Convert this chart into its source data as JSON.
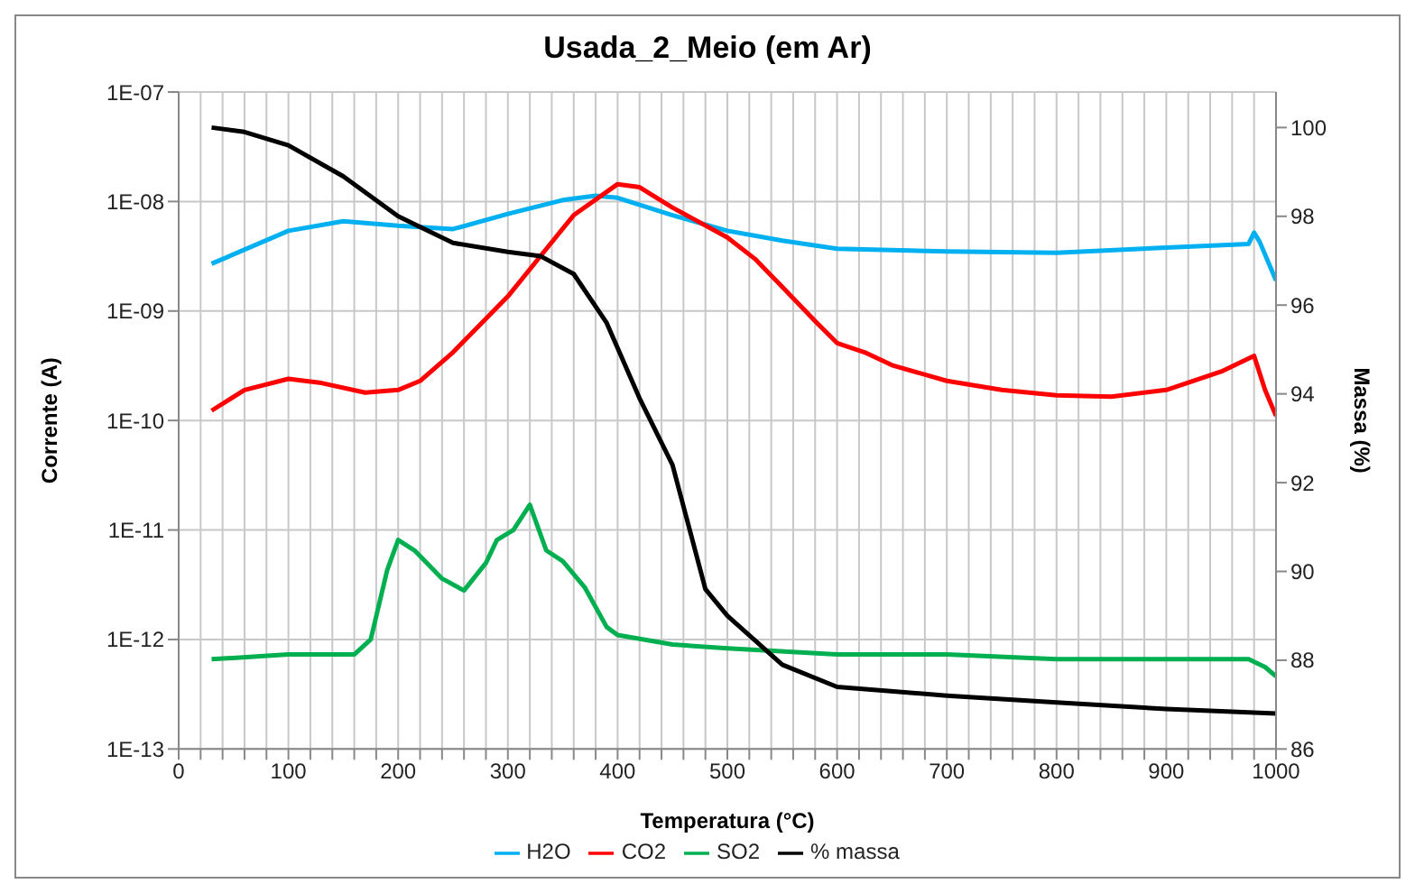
{
  "chart_data": {
    "type": "line",
    "title": "Usada_2_Meio (em Ar)",
    "xlabel": "Temperatura (°C)",
    "ylabel": "Corrente (A)",
    "y2label": "Massa (%)",
    "xlim": [
      0,
      1000
    ],
    "xticks": [
      0,
      {
        "value": 20,
        "label": null
      },
      {
        "value": 40,
        "label": null
      },
      {
        "value": 60,
        "label": null
      },
      {
        "value": 80,
        "label": null
      },
      100,
      {
        "value": 120,
        "label": null
      },
      {
        "value": 140,
        "label": null
      },
      {
        "value": 160,
        "label": null
      },
      {
        "value": 180,
        "label": null
      },
      200,
      {
        "value": 220,
        "label": null
      },
      {
        "value": 240,
        "label": null
      },
      {
        "value": 260,
        "label": null
      },
      {
        "value": 280,
        "label": null
      },
      300,
      {
        "value": 320,
        "label": null
      },
      {
        "value": 340,
        "label": null
      },
      {
        "value": 360,
        "label": null
      },
      {
        "value": 380,
        "label": null
      },
      400,
      {
        "value": 420,
        "label": null
      },
      {
        "value": 440,
        "label": null
      },
      {
        "value": 460,
        "label": null
      },
      {
        "value": 480,
        "label": null
      },
      500,
      {
        "value": 520,
        "label": null
      },
      {
        "value": 540,
        "label": null
      },
      {
        "value": 560,
        "label": null
      },
      {
        "value": 580,
        "label": null
      },
      600,
      {
        "value": 620,
        "label": null
      },
      {
        "value": 640,
        "label": null
      },
      {
        "value": 660,
        "label": null
      },
      {
        "value": 680,
        "label": null
      },
      700,
      {
        "value": 720,
        "label": null
      },
      {
        "value": 740,
        "label": null
      },
      {
        "value": 760,
        "label": null
      },
      {
        "value": 780,
        "label": null
      },
      800,
      {
        "value": 820,
        "label": null
      },
      {
        "value": 840,
        "label": null
      },
      {
        "value": 860,
        "label": null
      },
      {
        "value": 880,
        "label": null
      },
      900,
      {
        "value": 920,
        "label": null
      },
      {
        "value": 940,
        "label": null
      },
      {
        "value": 960,
        "label": null
      },
      {
        "value": 980,
        "label": null
      },
      1000
    ],
    "ylim": [
      1e-13,
      1e-07
    ],
    "yticks": [
      {
        "value": 1e-13,
        "label": "1E-13"
      },
      {
        "value": 1e-12,
        "label": "1E-12"
      },
      {
        "value": 1e-11,
        "label": "1E-11"
      },
      {
        "value": 1e-10,
        "label": "1E-10"
      },
      {
        "value": 1e-09,
        "label": "1E-09"
      },
      {
        "value": 1e-08,
        "label": "1E-08"
      },
      {
        "value": 1e-07,
        "label": "1E-07"
      }
    ],
    "y2lim": [
      86,
      100.8
    ],
    "y2ticks": [
      86,
      88,
      90,
      92,
      94,
      96,
      98,
      100
    ],
    "log": "y",
    "grid": true,
    "legend": "bottom",
    "series": [
      {
        "name": "H2O",
        "color": "#00b0f0",
        "x": [
          30,
          100,
          150,
          200,
          250,
          300,
          350,
          380,
          400,
          450,
          500,
          550,
          600,
          700,
          800,
          900,
          975,
          980,
          985,
          1000
        ],
        "values": [
          2.7e-09,
          5.4e-09,
          6.6e-09,
          6e-09,
          5.6e-09,
          7.7e-09,
          1.03e-08,
          1.13e-08,
          1.08e-08,
          7.5e-09,
          5.4e-09,
          4.4e-09,
          3.7e-09,
          3.5e-09,
          3.4e-09,
          3.8e-09,
          4.1e-09,
          5.2e-09,
          4.3e-09,
          1.9e-09
        ]
      },
      {
        "name": "CO2",
        "color": "#ff0000",
        "x": [
          30,
          60,
          100,
          130,
          170,
          200,
          220,
          250,
          300,
          330,
          360,
          400,
          420,
          450,
          500,
          525,
          550,
          580,
          600,
          625,
          650,
          700,
          750,
          800,
          850,
          900,
          950,
          980,
          990,
          1000
        ],
        "values": [
          1.23e-10,
          1.9e-10,
          2.4e-10,
          2.2e-10,
          1.8e-10,
          1.9e-10,
          2.3e-10,
          4.2e-10,
          1.36e-09,
          3.2e-09,
          7.5e-09,
          1.44e-08,
          1.35e-08,
          8.8e-09,
          4.7e-09,
          3e-09,
          1.66e-09,
          8.1e-10,
          5.1e-10,
          4.2e-10,
          3.2e-10,
          2.3e-10,
          1.9e-10,
          1.7e-10,
          1.65e-10,
          1.9e-10,
          2.8e-10,
          3.9e-10,
          1.9e-10,
          1.1e-10
        ]
      },
      {
        "name": "SO2",
        "color": "#00b050",
        "x": [
          30,
          100,
          160,
          175,
          190,
          200,
          215,
          240,
          260,
          280,
          290,
          305,
          320,
          335,
          350,
          370,
          390,
          400,
          450,
          500,
          600,
          700,
          800,
          900,
          975,
          990,
          1000
        ],
        "values": [
          6.6e-13,
          7.3e-13,
          7.3e-13,
          1e-12,
          4.3e-12,
          8.1e-12,
          6.5e-12,
          3.6e-12,
          2.8e-12,
          5e-12,
          8.1e-12,
          1e-11,
          1.7e-11,
          6.5e-12,
          5.2e-12,
          3e-12,
          1.3e-12,
          1.1e-12,
          9e-13,
          8.3e-13,
          7.3e-13,
          7.3e-13,
          6.6e-13,
          6.6e-13,
          6.6e-13,
          5.6e-13,
          4.6e-13
        ]
      },
      {
        "name": "% massa",
        "color": "#000000",
        "axis": "y2",
        "x": [
          30,
          60,
          100,
          150,
          200,
          250,
          300,
          330,
          360,
          390,
          420,
          450,
          480,
          500,
          550,
          600,
          700,
          800,
          900,
          1000
        ],
        "values": [
          100.0,
          99.9,
          99.6,
          98.9,
          98.0,
          97.4,
          97.2,
          97.1,
          96.7,
          95.6,
          93.9,
          92.4,
          89.6,
          89.0,
          87.9,
          87.4,
          87.2,
          87.05,
          86.9,
          86.8
        ]
      }
    ]
  }
}
